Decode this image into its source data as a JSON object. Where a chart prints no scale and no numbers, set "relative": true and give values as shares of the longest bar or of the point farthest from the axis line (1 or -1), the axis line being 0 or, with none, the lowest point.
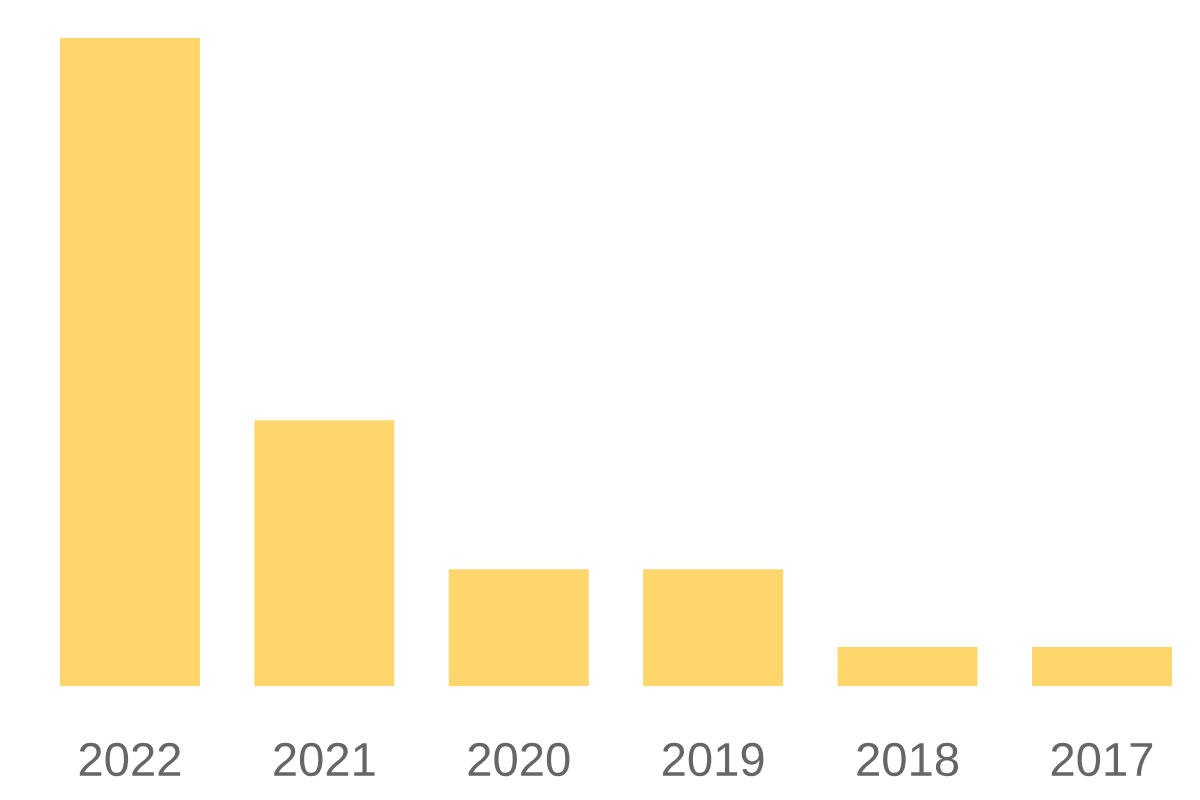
{
  "chart_data": {
    "type": "bar",
    "relative": true,
    "categories": [
      "2022",
      "2021",
      "2020",
      "2019",
      "2018",
      "2017"
    ],
    "values": [
      1,
      0.41,
      0.18,
      0.18,
      0.06,
      0.06
    ],
    "color": "#fed66b"
  }
}
